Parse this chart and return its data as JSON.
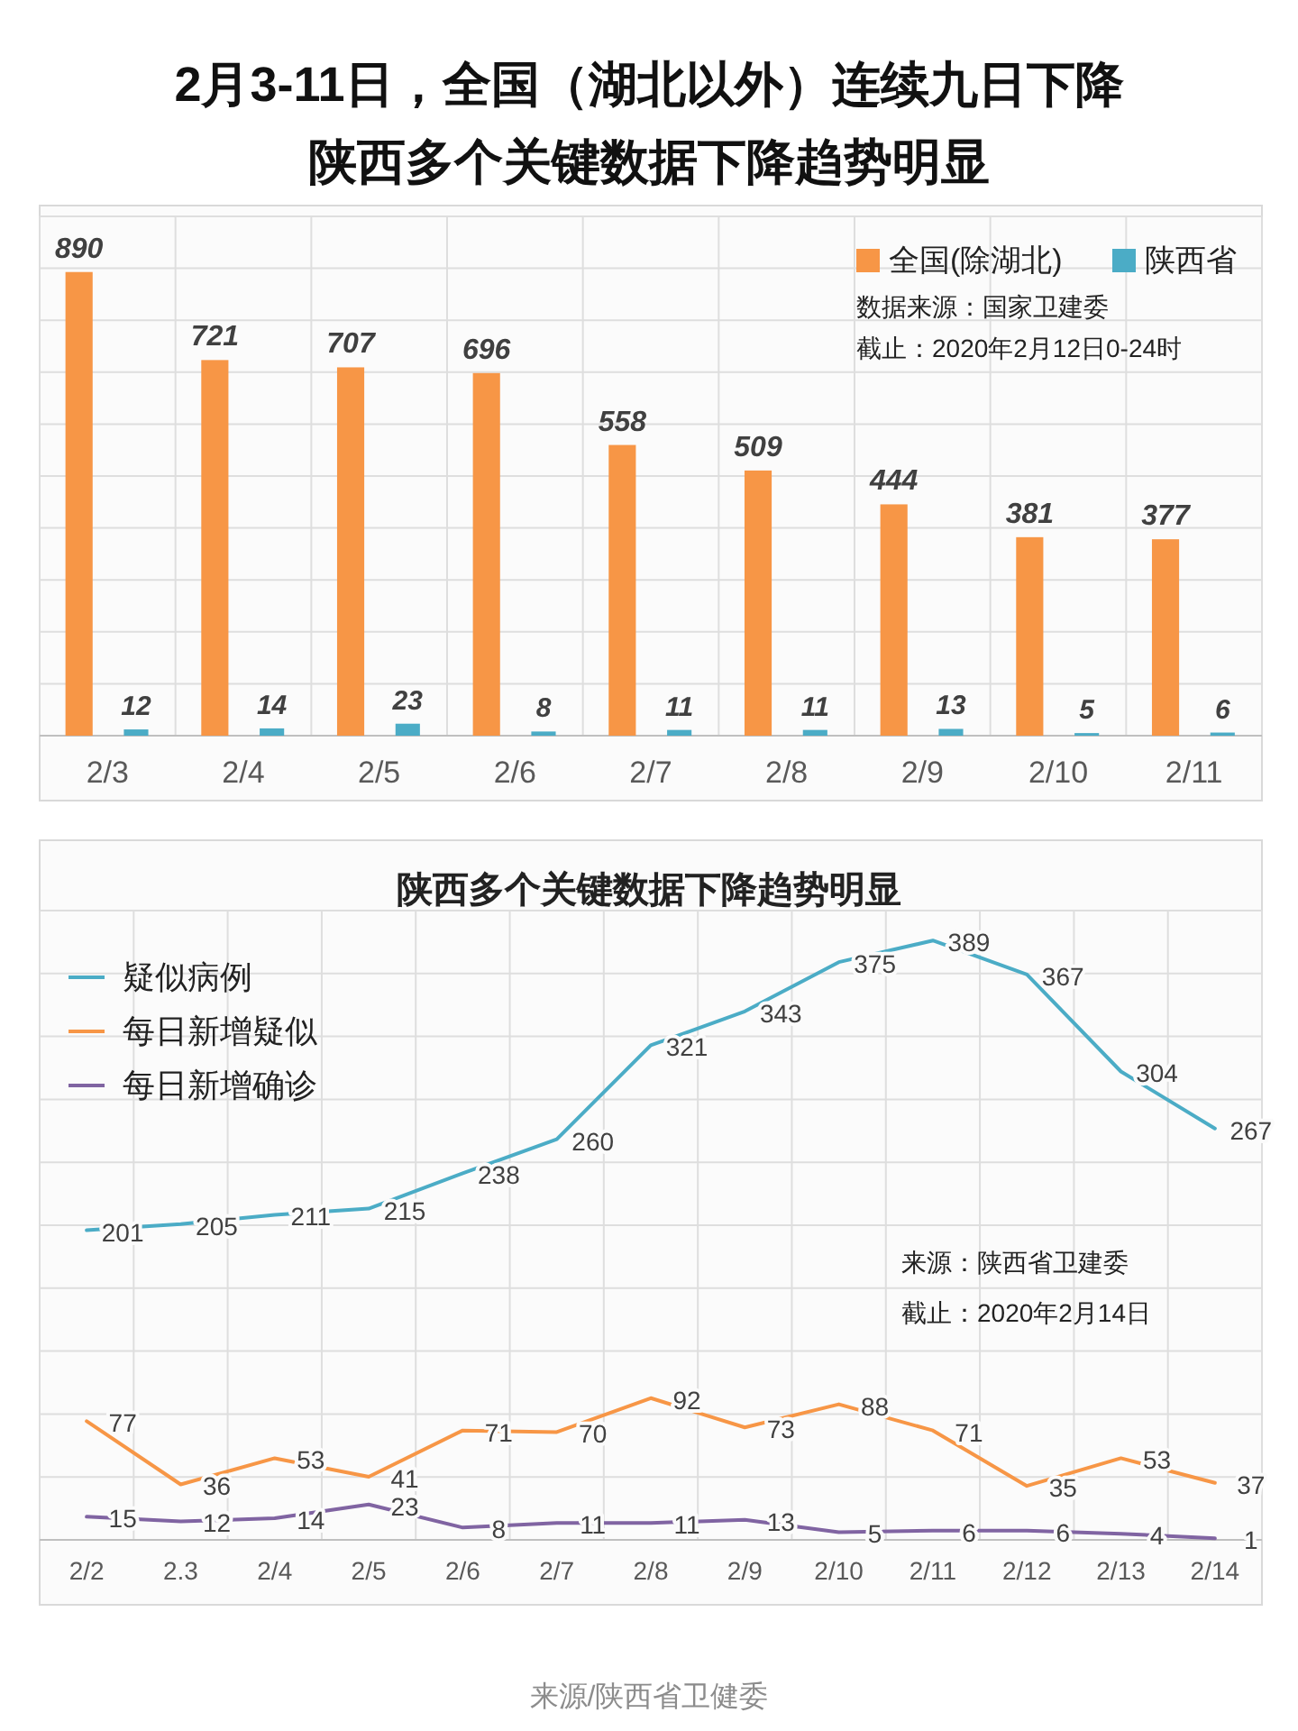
{
  "chart_data": [
    {
      "type": "bar",
      "title": "2月3-11日，全国（湖北以外）连续九日下降",
      "subtitle": "陕西多个关键数据下降趋势明显",
      "categories": [
        "2/3",
        "2/4",
        "2/5",
        "2/6",
        "2/7",
        "2/8",
        "2/9",
        "2/10",
        "2/11"
      ],
      "series": [
        {
          "name": "全国(除湖北)",
          "color": "#f79646",
          "values": [
            890,
            721,
            707,
            696,
            558,
            509,
            444,
            381,
            377
          ]
        },
        {
          "name": "陕西省",
          "color": "#4bacc6",
          "values": [
            12,
            14,
            23,
            8,
            11,
            11,
            13,
            5,
            6
          ]
        }
      ],
      "annotations": [
        "数据来源：国家卫建委",
        "截止：2020年2月12日0-24时"
      ],
      "data_labels": true,
      "grid": true,
      "legend": "top right"
    },
    {
      "type": "line",
      "title": "陕西多个关键数据下降趋势明显",
      "categories": [
        "2/2",
        "2.3",
        "2/4",
        "2/5",
        "2/6",
        "2/7",
        "2/8",
        "2/9",
        "2/10",
        "2/11",
        "2/12",
        "2/13",
        "2/14"
      ],
      "series": [
        {
          "name": "疑似病例",
          "color": "#4bacc6",
          "values": [
            201,
            205,
            211,
            215,
            238,
            260,
            321,
            343,
            375,
            389,
            367,
            304,
            267
          ]
        },
        {
          "name": "每日新增疑似",
          "color": "#f79646",
          "values": [
            77,
            36,
            53,
            41,
            71,
            70,
            92,
            73,
            88,
            71,
            35,
            53,
            37
          ]
        },
        {
          "name": "每日新增确诊",
          "color": "#8064a2",
          "values": [
            15,
            12,
            14,
            23,
            8,
            11,
            11,
            13,
            5,
            6,
            6,
            4,
            1
          ]
        }
      ],
      "annotations": [
        "来源：陕西省卫建委",
        "截止：2020年2月14日",
        "来源/陕西省卫健委"
      ],
      "data_labels": true,
      "grid": true,
      "legend": "top left",
      "marker": "none",
      "line_style": "solid"
    }
  ]
}
